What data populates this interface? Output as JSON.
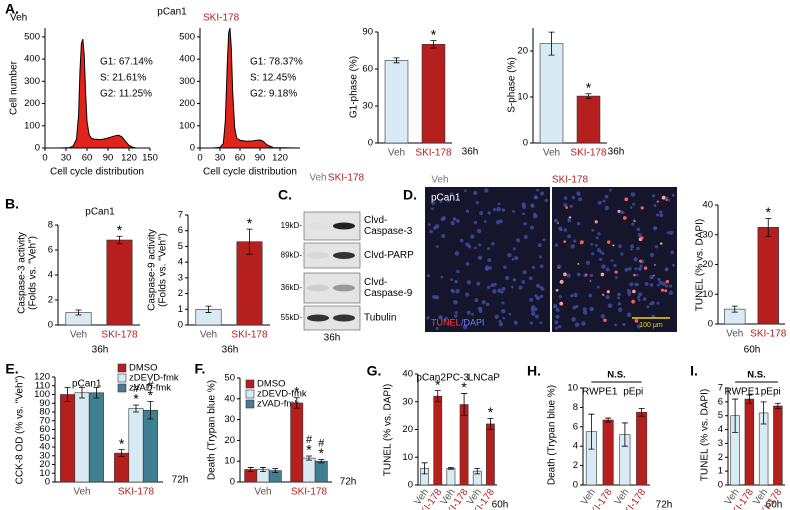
{
  "panel_labels": [
    "A.",
    "B.",
    "C.",
    "D.",
    "E.",
    "F.",
    "G.",
    "H.",
    "I."
  ],
  "blot": {
    "lanes": [
      "Veh",
      "SKI-178"
    ],
    "markers": [
      "19kD-",
      "89kD-",
      "36kD-",
      "55kD-"
    ],
    "proteins": [
      [
        "Clvd-",
        "Caspase-3"
      ],
      [
        "Clvd-PARP"
      ],
      [
        "Clvd-",
        "Caspase-9"
      ],
      [
        "Tubulin"
      ]
    ],
    "time": "36h"
  },
  "micrographs": {
    "conditions": [
      "Veh",
      "SKI-178"
    ],
    "cell_line": "pCan1",
    "stain": [
      "TUNEL",
      "/DAPI"
    ],
    "scale": "100 μm"
  },
  "chart_data": [
    {
      "type": "area",
      "title": "Veh",
      "subtitle": "pCan1",
      "ylabel": "Cell number",
      "xlabel": "Cell cycle distribution",
      "stats": [
        "G1: 67.14%",
        "S: 21.61%",
        "G2: 11.25%"
      ],
      "color": "#e0241b",
      "x": [
        0,
        20,
        35,
        40,
        45,
        48,
        50,
        52,
        54,
        56,
        58,
        60,
        63,
        66,
        70,
        80,
        90,
        100,
        105,
        110,
        115,
        120,
        125,
        130,
        150
      ],
      "values": [
        0,
        0,
        2,
        8,
        40,
        150,
        350,
        470,
        490,
        420,
        250,
        120,
        60,
        45,
        40,
        38,
        45,
        55,
        58,
        50,
        30,
        12,
        4,
        0,
        0
      ],
      "xlim": [
        0,
        150
      ],
      "xticks": [
        0,
        30,
        60,
        90,
        120,
        150
      ],
      "ylim": [
        0,
        540
      ],
      "yticks": [
        0,
        100,
        200,
        300,
        400,
        500
      ]
    },
    {
      "type": "area",
      "title": "SKI-178",
      "title_color": "#b5201f",
      "xlabel": "Cell cycle distribution",
      "stats": [
        "G1: 78.37%",
        "S: 12.45%",
        "G2: 9.18%"
      ],
      "color": "#e0241b",
      "x": [
        0,
        20,
        30,
        35,
        38,
        41,
        43,
        45,
        47,
        49,
        52,
        55,
        60,
        70,
        80,
        85,
        90,
        95,
        100,
        110,
        150
      ],
      "values": [
        0,
        0,
        3,
        20,
        120,
        380,
        520,
        540,
        450,
        250,
        90,
        45,
        35,
        30,
        32,
        35,
        36,
        30,
        15,
        2,
        0
      ],
      "xlim": [
        0,
        150
      ],
      "xticks": [
        0,
        30,
        60,
        90,
        120
      ],
      "ylim": [
        0,
        540
      ],
      "yticks": [
        0,
        100,
        200,
        300,
        400,
        500
      ]
    },
    {
      "type": "bar",
      "ylabel": "G1-phase (%)",
      "note": "36h",
      "categories": [
        "Veh",
        "SKI-178"
      ],
      "category_colors": [
        "#555555",
        "#b5201f"
      ],
      "colors": [
        "#d8eaf3",
        "#b5201f"
      ],
      "values": [
        67,
        80
      ],
      "errors": [
        2,
        3
      ],
      "sig": [
        null,
        "*"
      ],
      "ylim": [
        0,
        90
      ],
      "yticks": [
        0,
        30,
        60,
        90
      ]
    },
    {
      "type": "bar",
      "ylabel": "S-phase (%)",
      "note": "36h",
      "categories": [
        "Veh",
        "SKI-178"
      ],
      "category_colors": [
        "#555555",
        "#b5201f"
      ],
      "colors": [
        "#d8eaf3",
        "#b5201f"
      ],
      "values": [
        21.6,
        10.2
      ],
      "errors": [
        2.5,
        0.5
      ],
      "sig": [
        null,
        "*"
      ],
      "ylim": [
        0,
        25
      ],
      "yticks": [
        0,
        10,
        20
      ]
    },
    {
      "type": "bar",
      "title": "pCan1",
      "ylabel": [
        "Caspase-3 activity",
        "(Folds vs. \"Veh\")"
      ],
      "note": "36h",
      "categories": [
        "Veh",
        "SKI-178"
      ],
      "category_colors": [
        "#555555",
        "#b5201f"
      ],
      "colors": [
        "#d8eaf3",
        "#b5201f"
      ],
      "values": [
        1,
        6.8
      ],
      "errors": [
        0.2,
        0.3
      ],
      "sig": [
        null,
        "*"
      ],
      "ylim": [
        0,
        8
      ],
      "yticks": [
        0,
        2,
        4,
        6,
        8
      ]
    },
    {
      "type": "bar",
      "ylabel": [
        "Caspase-9 activity",
        "(Folds vs. \"Veh\")"
      ],
      "note": "36h",
      "categories": [
        "Veh",
        "SKI-178"
      ],
      "category_colors": [
        "#555555",
        "#b5201f"
      ],
      "colors": [
        "#d8eaf3",
        "#b5201f"
      ],
      "values": [
        1,
        5.3
      ],
      "errors": [
        0.2,
        0.8
      ],
      "sig": [
        null,
        "*"
      ],
      "ylim": [
        0,
        7
      ],
      "yticks": [
        0,
        1,
        2,
        3,
        4,
        5,
        6,
        7
      ]
    },
    {
      "type": "bar",
      "ylabel": "TUNEL (% vs. DAPI)",
      "note": "60h",
      "categories": [
        "Veh",
        "SKI-178"
      ],
      "category_colors": [
        "#555555",
        "#b5201f"
      ],
      "colors": [
        "#d8eaf3",
        "#b5201f"
      ],
      "values": [
        5,
        32.5
      ],
      "errors": [
        1,
        3
      ],
      "sig": [
        null,
        "*"
      ],
      "ylim": [
        0,
        40
      ],
      "yticks": [
        0,
        10,
        20,
        30,
        40
      ]
    },
    {
      "type": "bar",
      "title": "pCan1",
      "ylabel": "CCK-8 OD (% vs. \"Veh\")",
      "note": "72h",
      "categories": [
        "Veh",
        "SKI-178"
      ],
      "category_colors": [
        "#555555",
        "#b5201f"
      ],
      "series": [
        {
          "name": "DMSO",
          "color": "#b5201f",
          "values": [
            100,
            33
          ],
          "errors": [
            8,
            4
          ],
          "sig": [
            null,
            "*"
          ]
        },
        {
          "name": "zDEVD-fmk",
          "color": "#d8eaf3",
          "values": [
            102,
            84
          ],
          "errors": [
            6,
            4
          ],
          "sig": [
            null,
            "*"
          ],
          "hash": [
            null,
            "#"
          ]
        },
        {
          "name": "zVAD-fmk",
          "color": "#3f7f91",
          "values": [
            102,
            82
          ],
          "errors": [
            6,
            10
          ],
          "sig": [
            null,
            "*"
          ],
          "hash": [
            null,
            "#"
          ]
        }
      ],
      "ylim": [
        0,
        120
      ],
      "yticks": [
        0,
        10,
        20,
        30,
        40,
        50,
        60,
        70,
        80,
        90,
        100,
        110,
        120
      ]
    },
    {
      "type": "bar",
      "ylabel": "Death (Trypan blue %)",
      "note": "72h",
      "categories": [
        "Veh",
        "SKI-178"
      ],
      "category_colors": [
        "#555555",
        "#b5201f"
      ],
      "series": [
        {
          "name": "DMSO",
          "color": "#b5201f",
          "values": [
            6,
            38
          ],
          "errors": [
            1,
            2.5
          ],
          "sig": [
            null,
            "*"
          ]
        },
        {
          "name": "zDEVD-fmk",
          "color": "#d8eaf3",
          "values": [
            6,
            11.5
          ],
          "errors": [
            1,
            1
          ],
          "sig": [
            null,
            "*"
          ],
          "hash": [
            null,
            "#"
          ]
        },
        {
          "name": "zVAD-fmk",
          "color": "#3f7f91",
          "values": [
            5.5,
            10
          ],
          "errors": [
            1,
            0.8
          ],
          "sig": [
            null,
            "*"
          ],
          "hash": [
            null,
            "#"
          ]
        }
      ],
      "ylim": [
        0,
        50
      ],
      "yticks": [
        0,
        10,
        20,
        30,
        40,
        50
      ]
    },
    {
      "type": "bar",
      "ylabel": "TUNEL (% vs. DAPI)",
      "note": "60h",
      "rotate_labels": true,
      "groups": [
        "pCan2",
        "PC-3",
        "LNCaP"
      ],
      "categories": [
        "Veh",
        "SKI-178",
        "Veh",
        "SKI-178",
        "Veh",
        "SKI-178"
      ],
      "category_colors": [
        "#555555",
        "#b5201f",
        "#555555",
        "#b5201f",
        "#555555",
        "#b5201f"
      ],
      "colors": [
        "#d8eaf3",
        "#b5201f",
        "#d8eaf3",
        "#b5201f",
        "#d8eaf3",
        "#b5201f"
      ],
      "values": [
        6,
        32,
        6,
        29,
        5,
        22
      ],
      "errors": [
        2,
        2,
        0.3,
        4,
        1,
        2
      ],
      "sig": [
        null,
        "*",
        null,
        "*",
        null,
        "*"
      ],
      "ylim": [
        0,
        40
      ],
      "yticks": [
        0,
        10,
        20,
        30,
        40
      ]
    },
    {
      "type": "bar",
      "ylabel": "Death (Trypan blue %)",
      "note": "72h",
      "rotate_labels": true,
      "ns": "N.S.",
      "groups": [
        "RWPE1",
        "pEpi"
      ],
      "categories": [
        "Veh",
        "SKI-178",
        "Veh",
        "SKI-178"
      ],
      "category_colors": [
        "#555555",
        "#b5201f",
        "#555555",
        "#b5201f"
      ],
      "colors": [
        "#d8eaf3",
        "#b5201f",
        "#d8eaf3",
        "#b5201f"
      ],
      "values": [
        5.5,
        6.7,
        5.2,
        7.5
      ],
      "errors": [
        1.8,
        0.2,
        1.2,
        0.4
      ],
      "ylim": [
        0,
        10
      ],
      "yticks": [
        0,
        2,
        4,
        6,
        8,
        10
      ]
    },
    {
      "type": "bar",
      "ylabel": "TUNEL (% vs. DAPI)",
      "note": "60h",
      "rotate_labels": true,
      "ns": "N.S.",
      "groups": [
        "RWPE1",
        "pEpi"
      ],
      "categories": [
        "Veh",
        "SKI-178",
        "Veh",
        "SKI-178"
      ],
      "category_colors": [
        "#555555",
        "#b5201f",
        "#555555",
        "#b5201f"
      ],
      "colors": [
        "#d8eaf3",
        "#b5201f",
        "#d8eaf3",
        "#b5201f"
      ],
      "values": [
        5,
        6.2,
        5.2,
        5.7
      ],
      "errors": [
        1.2,
        0.3,
        0.8,
        0.2
      ],
      "ylim": [
        0,
        7
      ],
      "yticks": [
        0,
        1,
        2,
        3,
        4,
        5,
        6,
        7
      ]
    }
  ]
}
